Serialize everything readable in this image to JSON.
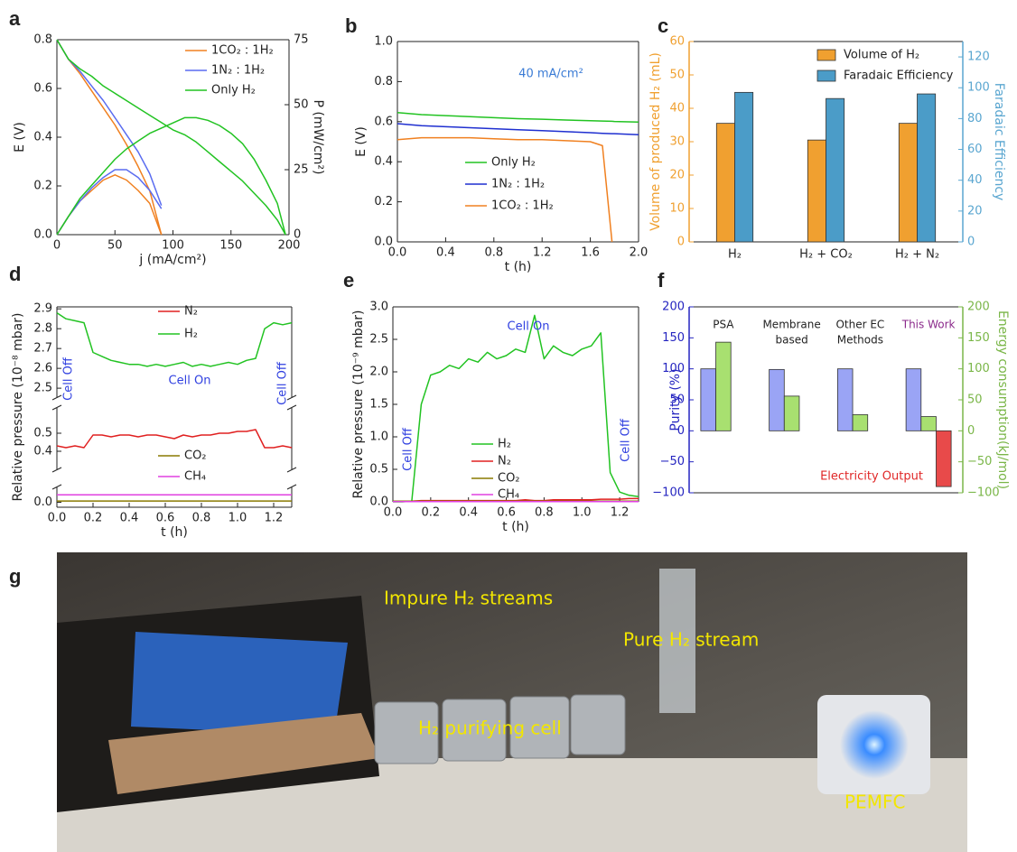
{
  "chart_data": [
    {
      "panel": "a",
      "type": "line",
      "x": [
        0,
        10,
        20,
        30,
        40,
        50,
        60,
        70,
        80,
        90,
        100,
        110,
        120,
        130,
        140,
        150,
        160,
        170,
        180,
        190,
        197
      ],
      "xlim": [
        0,
        200
      ],
      "xticks": [
        0,
        50,
        100,
        150,
        200
      ],
      "ylim": [
        0,
        0.8
      ],
      "yticks": [
        {
          "value": 0,
          "label": "0.0"
        },
        {
          "value": 0.2,
          "label": "0.2"
        },
        {
          "value": 0.4,
          "label": "0.4"
        },
        {
          "value": 0.6,
          "label": "0.6"
        },
        {
          "value": 0.8,
          "label": "0.8"
        }
      ],
      "y2lim": [
        0,
        75
      ],
      "y2ticks": [
        0,
        25,
        50,
        75
      ],
      "xlabel": "j (mA/cm²)",
      "ylabel": "E (V)",
      "y2label": "P (mW/cm²)",
      "series": [
        {
          "name": "1CO₂ : 1H₂",
          "color": "#f08020",
          "values": [
            0.8,
            0.72,
            0.66,
            0.59,
            0.52,
            0.45,
            0.37,
            0.28,
            0.18,
            0.0,
            null,
            null,
            null,
            null,
            null,
            null,
            null,
            null,
            null,
            null,
            null
          ]
        },
        {
          "name": "1N₂ : 1H₂",
          "color": "#5a6cf0",
          "values": [
            0.8,
            0.72,
            0.67,
            0.61,
            0.55,
            0.48,
            0.41,
            0.34,
            0.25,
            0.12,
            null,
            null,
            null,
            null,
            null,
            null,
            null,
            null,
            null,
            null,
            null
          ]
        },
        {
          "name": "Only H₂",
          "color": "#22c322",
          "values": [
            0.8,
            0.72,
            0.68,
            0.65,
            0.61,
            0.58,
            0.55,
            0.52,
            0.49,
            0.46,
            0.43,
            0.41,
            0.38,
            0.34,
            0.3,
            0.26,
            0.22,
            0.17,
            0.12,
            0.06,
            0.0
          ]
        },
        {
          "color": "#f08020",
          "axis": "y2",
          "values": [
            0,
            7,
            13,
            17,
            21,
            23,
            21,
            17,
            12,
            0,
            null,
            null,
            null,
            null,
            null,
            null,
            null,
            null,
            null,
            null,
            null
          ]
        },
        {
          "color": "#5a6cf0",
          "axis": "y2",
          "values": [
            0,
            7,
            13,
            18,
            22,
            25,
            25,
            22,
            17,
            10,
            null,
            null,
            null,
            null,
            null,
            null,
            null,
            null,
            null,
            null,
            null
          ]
        },
        {
          "color": "#22c322",
          "axis": "y2",
          "values": [
            0,
            7,
            14,
            19,
            24,
            29,
            33,
            36,
            39,
            41,
            43,
            45,
            45,
            44,
            42,
            39,
            35,
            29,
            21,
            12,
            0
          ]
        }
      ]
    },
    {
      "panel": "b",
      "type": "line",
      "x": [
        0,
        0.2,
        0.4,
        0.6,
        0.8,
        1.0,
        1.2,
        1.4,
        1.6,
        1.7,
        1.78,
        1.8,
        2.0
      ],
      "xlim": [
        0,
        2.0
      ],
      "xticks": [
        {
          "value": 0,
          "label": "0.0"
        },
        {
          "value": 0.4,
          "label": "0.4"
        },
        {
          "value": 0.8,
          "label": "0.8"
        },
        {
          "value": 1.2,
          "label": "1.2"
        },
        {
          "value": 1.6,
          "label": "1.6"
        },
        {
          "value": 2.0,
          "label": "2.0"
        }
      ],
      "ylim": [
        0,
        1.0
      ],
      "yticks": [
        {
          "value": 0,
          "label": "0.0"
        },
        {
          "value": 0.2,
          "label": "0.2"
        },
        {
          "value": 0.4,
          "label": "0.4"
        },
        {
          "value": 0.6,
          "label": "0.6"
        },
        {
          "value": 0.8,
          "label": "0.8"
        },
        {
          "value": 1.0,
          "label": "1.0"
        }
      ],
      "xlabel": "t (h)",
      "ylabel": "E (V)",
      "annotations": [
        {
          "text": "40 mA/cm²",
          "color": "#3a7bd5"
        }
      ],
      "series": [
        {
          "name": "Only H₂",
          "color": "#22c322",
          "values": [
            0.645,
            0.635,
            0.63,
            0.625,
            0.62,
            0.615,
            0.612,
            0.608,
            0.605,
            0.603,
            0.602,
            0.601,
            0.598
          ]
        },
        {
          "name": "1N₂ : 1H₂",
          "color": "#1f2fd0",
          "values": [
            0.59,
            0.58,
            0.575,
            0.57,
            0.565,
            0.56,
            0.555,
            0.55,
            0.545,
            0.542,
            0.54,
            0.54,
            0.535
          ]
        },
        {
          "name": "1CO₂ : 1H₂",
          "color": "#f08020",
          "values": [
            0.51,
            0.52,
            0.52,
            0.52,
            0.515,
            0.51,
            0.51,
            0.505,
            0.5,
            0.48,
            0.0,
            null,
            null
          ]
        }
      ]
    },
    {
      "panel": "c",
      "type": "bar",
      "categories": [
        "H₂",
        "H₂ + CO₂",
        "H₂ + N₂"
      ],
      "ylim": [
        0,
        60
      ],
      "yticks": [
        0,
        10,
        20,
        30,
        40,
        50,
        60
      ],
      "y2lim": [
        0,
        130
      ],
      "y2ticks": [
        0,
        20,
        40,
        60,
        80,
        100,
        120
      ],
      "ylabel": "Volume of produced H₂ (mL)",
      "y2label": "Faradaic Efficiency",
      "y_color": "#f0a030",
      "y2_color": "#5aa6d0",
      "series": [
        {
          "name": "Volume of H₂",
          "color": "#f0a030",
          "values": [
            35.5,
            30.5,
            35.5
          ]
        },
        {
          "name": "Faradaic Efficiency",
          "color": "#4b9cc8",
          "axis": "y2",
          "values": [
            97,
            93,
            96
          ]
        }
      ]
    },
    {
      "panel": "d",
      "type": "line",
      "x": [
        0,
        0.05,
        0.1,
        0.15,
        0.2,
        0.25,
        0.3,
        0.35,
        0.4,
        0.45,
        0.5,
        0.55,
        0.6,
        0.65,
        0.7,
        0.75,
        0.8,
        0.85,
        0.9,
        0.95,
        1.0,
        1.05,
        1.1,
        1.15,
        1.2,
        1.25,
        1.3
      ],
      "xlim": [
        0,
        1.3
      ],
      "xticks": [
        {
          "value": 0,
          "label": "0.0"
        },
        {
          "value": 0.2,
          "label": "0.2"
        },
        {
          "value": 0.4,
          "label": "0.4"
        },
        {
          "value": 0.6,
          "label": "0.6"
        },
        {
          "value": 0.8,
          "label": "0.8"
        },
        {
          "value": 1.0,
          "label": "1.0"
        },
        {
          "value": 1.2,
          "label": "1.2"
        }
      ],
      "ysegments": [
        [
          -0.02,
          0.06
        ],
        [
          0.3,
          0.64
        ],
        [
          2.455,
          2.91
        ]
      ],
      "yticks": [
        {
          "value": 0,
          "label": "0.0"
        },
        0.4,
        0.5,
        2.5,
        2.6,
        2.7,
        2.8,
        2.9
      ],
      "xlabel": "t (h)",
      "ylabel": "Relative pressure (10⁻⁸ mbar)",
      "annotations": [
        {
          "text": "Cell Off",
          "color": "#3040e0"
        },
        {
          "text": "Cell On",
          "color": "#3040e0"
        },
        {
          "text": "Cell Off",
          "color": "#3040e0"
        }
      ],
      "series": [
        {
          "name": "N₂",
          "color": "#e02020",
          "values": [
            0.43,
            0.42,
            0.43,
            0.42,
            0.49,
            0.49,
            0.48,
            0.49,
            0.49,
            0.48,
            0.49,
            0.49,
            0.48,
            0.47,
            0.49,
            0.48,
            0.49,
            0.49,
            0.5,
            0.5,
            0.51,
            0.51,
            0.52,
            0.42,
            0.42,
            0.43,
            0.42
          ]
        },
        {
          "name": "H₂",
          "color": "#22c322",
          "values": [
            2.88,
            2.85,
            2.84,
            2.83,
            2.68,
            2.66,
            2.64,
            2.63,
            2.62,
            2.62,
            2.61,
            2.62,
            2.61,
            2.62,
            2.63,
            2.61,
            2.62,
            2.61,
            2.62,
            2.63,
            2.62,
            2.64,
            2.65,
            2.8,
            2.83,
            2.82,
            2.83
          ]
        },
        {
          "name": "CO₂",
          "color": "#8a7a00",
          "values": [
            0.005,
            0.005,
            0.005,
            0.005,
            0.005,
            0.005,
            0.005,
            0.005,
            0.005,
            0.005,
            0.005,
            0.005,
            0.005,
            0.005,
            0.005,
            0.005,
            0.005,
            0.005,
            0.005,
            0.005,
            0.005,
            0.005,
            0.005,
            0.005,
            0.005,
            0.005,
            0.005
          ]
        },
        {
          "name": "CH₄",
          "color": "#e040e0",
          "values": [
            0.03,
            0.03,
            0.03,
            0.03,
            0.03,
            0.03,
            0.03,
            0.03,
            0.03,
            0.03,
            0.03,
            0.03,
            0.03,
            0.03,
            0.03,
            0.03,
            0.03,
            0.03,
            0.03,
            0.03,
            0.03,
            0.03,
            0.03,
            0.03,
            0.03,
            0.03,
            0.03
          ]
        }
      ]
    },
    {
      "panel": "e",
      "type": "line",
      "x": [
        0,
        0.05,
        0.1,
        0.15,
        0.2,
        0.25,
        0.3,
        0.35,
        0.4,
        0.45,
        0.5,
        0.55,
        0.6,
        0.65,
        0.7,
        0.75,
        0.8,
        0.85,
        0.9,
        0.95,
        1.0,
        1.05,
        1.1,
        1.15,
        1.2,
        1.25,
        1.3
      ],
      "xlim": [
        0,
        1.3
      ],
      "xticks": [
        {
          "value": 0,
          "label": "0.0"
        },
        {
          "value": 0.2,
          "label": "0.2"
        },
        {
          "value": 0.4,
          "label": "0.4"
        },
        {
          "value": 0.6,
          "label": "0.6"
        },
        {
          "value": 0.8,
          "label": "0.8"
        },
        {
          "value": 1.0,
          "label": "1.0"
        },
        {
          "value": 1.2,
          "label": "1.2"
        }
      ],
      "ylim": [
        0,
        3.0
      ],
      "yticks": [
        {
          "value": 0,
          "label": "0.0"
        },
        {
          "value": 0.5,
          "label": "0.5"
        },
        {
          "value": 1.0,
          "label": "1.0"
        },
        {
          "value": 1.5,
          "label": "1.5"
        },
        {
          "value": 2.0,
          "label": "2.0"
        },
        {
          "value": 2.5,
          "label": "2.5"
        },
        {
          "value": 3.0,
          "label": "3.0"
        }
      ],
      "xlabel": "t (h)",
      "ylabel": "Relative pressure (10⁻⁹ mbar)",
      "annotations": [
        {
          "text": "Cell On",
          "color": "#3040e0"
        },
        {
          "text": "Cell Off",
          "color": "#3040e0"
        },
        {
          "text": "Cell Off",
          "color": "#3040e0"
        }
      ],
      "series": [
        {
          "name": "H₂",
          "color": "#22c322",
          "values": [
            0,
            0,
            0.01,
            1.5,
            1.95,
            2.0,
            2.1,
            2.05,
            2.2,
            2.15,
            2.3,
            2.2,
            2.25,
            2.35,
            2.3,
            2.87,
            2.2,
            2.4,
            2.3,
            2.25,
            2.35,
            2.4,
            2.6,
            0.45,
            0.15,
            0.1,
            0.08
          ]
        },
        {
          "name": "N₂",
          "color": "#e02020",
          "values": [
            0.01,
            0.01,
            0.01,
            0.02,
            0.02,
            0.02,
            0.02,
            0.02,
            0.02,
            0.02,
            0.02,
            0.02,
            0.02,
            0.02,
            0.03,
            0.02,
            0.02,
            0.03,
            0.03,
            0.03,
            0.03,
            0.03,
            0.04,
            0.04,
            0.04,
            0.05,
            0.05
          ]
        },
        {
          "name": "CO₂",
          "color": "#8a7a00",
          "values": [
            0.01,
            0.01,
            0.01,
            0.01,
            0.01,
            0.01,
            0.01,
            0.01,
            0.01,
            0.01,
            0.01,
            0.01,
            0.01,
            0.01,
            0.01,
            0.01,
            0.01,
            0.01,
            0.01,
            0.01,
            0.01,
            0.01,
            0.01,
            0.01,
            0.01,
            0.01,
            0.01
          ]
        },
        {
          "name": "CH₄",
          "color": "#e040e0",
          "values": [
            0.003,
            0.003,
            0.003,
            0.003,
            0.003,
            0.003,
            0.003,
            0.003,
            0.003,
            0.003,
            0.003,
            0.003,
            0.003,
            0.003,
            0.003,
            0.003,
            0.003,
            0.003,
            0.003,
            0.003,
            0.003,
            0.003,
            0.003,
            0.003,
            0.003,
            0.003,
            0.003
          ]
        }
      ]
    },
    {
      "panel": "f",
      "type": "bar",
      "categories": [
        [
          "PSA"
        ],
        [
          "Membrane",
          "based"
        ],
        [
          "Other EC",
          "Methods"
        ],
        [
          "This Work"
        ]
      ],
      "category_colors": [
        "#222222",
        "#222222",
        "#222222",
        "#8b2a8b"
      ],
      "ylim": [
        -100,
        200
      ],
      "yticks": [
        {
          "value": -100,
          "label": "−100"
        },
        {
          "value": -50,
          "label": "−50"
        },
        0,
        50,
        100,
        150,
        200
      ],
      "y2lim": [
        -100,
        200
      ],
      "y2ticks": [
        {
          "value": -100,
          "label": "−100"
        },
        {
          "value": -50,
          "label": "−50"
        },
        0,
        50,
        100,
        150,
        200
      ],
      "ylabel": "Purity (%)",
      "y2label": "Energy consumption(kJ/mol)",
      "y_color": "#2525c0",
      "y2_color": "#7ab648",
      "annotations": [
        {
          "text": "Electricity Output",
          "color": "#e02828"
        }
      ],
      "series": [
        {
          "color": "#9aa4f5",
          "values": [
            100,
            99,
            100,
            100
          ]
        },
        {
          "color": "#a8e070",
          "axis": "y2",
          "values": [
            143,
            56,
            26,
            23
          ]
        },
        {
          "color": "#e84a4a",
          "axis": "y2",
          "values": [
            null,
            null,
            null,
            -90
          ]
        }
      ]
    }
  ],
  "photo": {
    "panel": "g",
    "labels": [
      "Impure H₂ streams",
      "Pure H₂ stream",
      "H₂ purifying cell",
      "PEMFC"
    ]
  }
}
